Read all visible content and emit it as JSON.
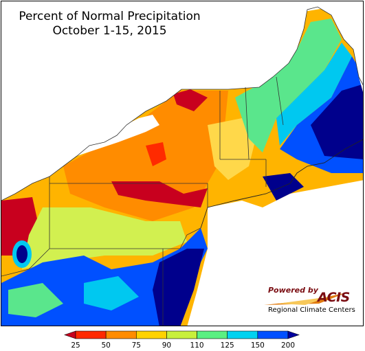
{
  "title": {
    "line1": "Percent of Normal Precipitation",
    "line2": "October 1-15, 2015"
  },
  "logo": {
    "powered_by": "Powered by",
    "name": "ACIS",
    "subtitle": "Regional Climate Centers"
  },
  "legend": {
    "labels": [
      "25",
      "50",
      "75",
      "90",
      "110",
      "125",
      "150",
      "200"
    ],
    "colors": [
      "#c8001e",
      "#ff2a00",
      "#ff8c00",
      "#ffd200",
      "#c8f03c",
      "#5af082",
      "#00d2f0",
      "#0050ff",
      "#0000a0"
    ],
    "unit": "percent of normal"
  },
  "map_colors": {
    "very_dry": "#c8001e",
    "dry": "#ff7a00",
    "below_normal": "#ffc800",
    "normal": "#d2f050",
    "above_normal": "#5ae68c",
    "wet": "#00c8f0",
    "very_wet": "#0050ff",
    "extreme_wet": "#00008c",
    "lakes": "#ffffff",
    "boundaries": "#555555"
  }
}
